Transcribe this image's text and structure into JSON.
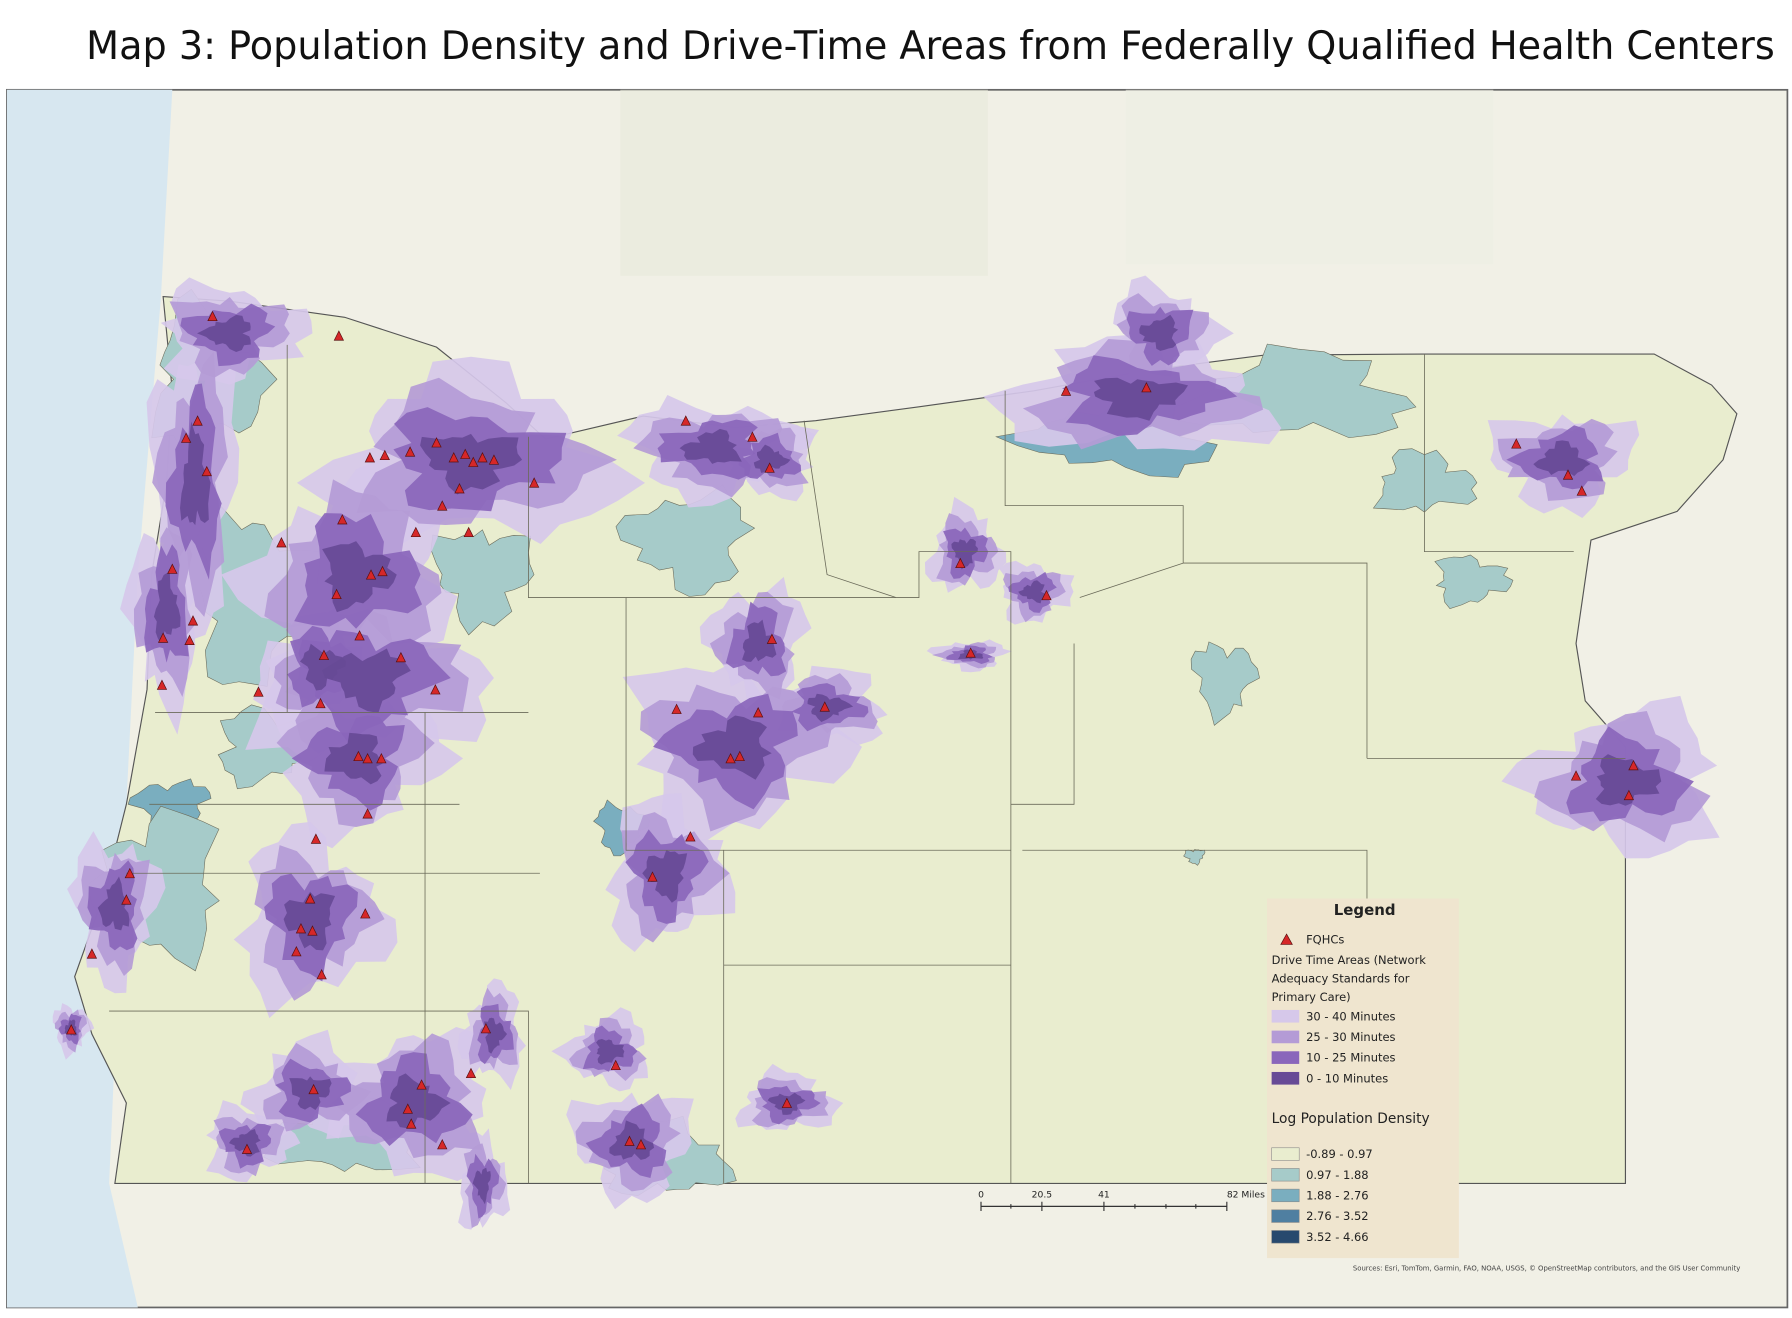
{
  "title": "Map 3: Population Density and Drive-Time Areas from Federally Qualified Health Centers",
  "legend": {
    "title": "Legend",
    "fqhc": "FQHCs",
    "drive_time_title": [
      "Drive Time Areas (Network",
      "Adequacy Standards for",
      "Primary Care)"
    ],
    "drive_time": [
      {
        "label": "30 - 40 Minutes",
        "color": "#d6c8ea"
      },
      {
        "label": "25 - 30 Minutes",
        "color": "#b49bd6"
      },
      {
        "label": "10 - 25 Minutes",
        "color": "#8a66bb"
      },
      {
        "label": "0 - 10 Minutes",
        "color": "#674a96"
      }
    ],
    "density_title": "Log Population Density",
    "density": [
      {
        "label": "-0.89 - 0.97",
        "color": "#e9edcf"
      },
      {
        "label": "0.97 - 1.88",
        "color": "#a6cbc9"
      },
      {
        "label": "1.88 - 2.76",
        "color": "#7aaebf"
      },
      {
        "label": "2.76 - 3.52",
        "color": "#4f7fa1"
      },
      {
        "label": "3.52 - 4.66",
        "color": "#27496e"
      }
    ]
  },
  "scale_bar": {
    "labels": [
      "0",
      "20.5",
      "41",
      "82 Miles"
    ]
  },
  "attribution": "Sources: Esri, TomTom, Garmin, FAO, NOAA, USGS, © OpenStreetMap contributors, and the GIS User Community"
}
